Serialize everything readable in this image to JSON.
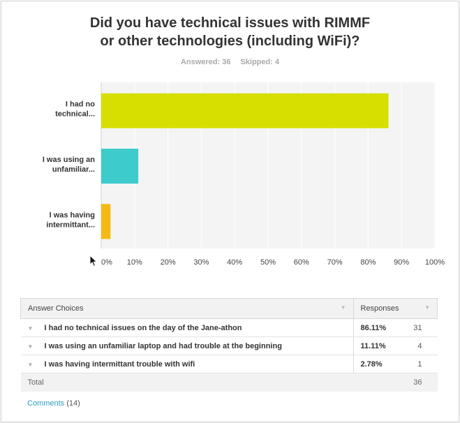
{
  "question": {
    "title_line1": "Did you have technical issues with RIMMF",
    "title_line2": "or other technologies (including WiFi)?",
    "answered_label": "Answered: 36",
    "skipped_label": "Skipped: 4"
  },
  "chart_data": {
    "type": "bar",
    "orientation": "horizontal",
    "categories": [
      [
        "I had no",
        "technical..."
      ],
      [
        "I was using an",
        "unfamiliar..."
      ],
      [
        "I was having",
        "intermittant..."
      ]
    ],
    "values": [
      86.11,
      11.11,
      2.78
    ],
    "colors": [
      "#d6df00",
      "#3ecbcb",
      "#f5b914"
    ],
    "xlim": [
      0,
      100
    ],
    "xticks": [
      "0%",
      "10%",
      "20%",
      "30%",
      "40%",
      "50%",
      "60%",
      "70%",
      "80%",
      "90%",
      "100%"
    ],
    "grid": true
  },
  "table": {
    "header_choices": "Answer Choices",
    "header_responses": "Responses",
    "rows": [
      {
        "choice": "I had no technical issues on the day of the Jane-athon",
        "percent": "86.11%",
        "count": "31"
      },
      {
        "choice": "I was using an unfamiliar laptop and had trouble at the beginning",
        "percent": "11.11%",
        "count": "4"
      },
      {
        "choice": "I was having intermittant trouble with wifi",
        "percent": "2.78%",
        "count": "1"
      }
    ],
    "total_label": "Total",
    "total_count": "36"
  },
  "comments": {
    "label": "Comments",
    "count": "(14)"
  }
}
